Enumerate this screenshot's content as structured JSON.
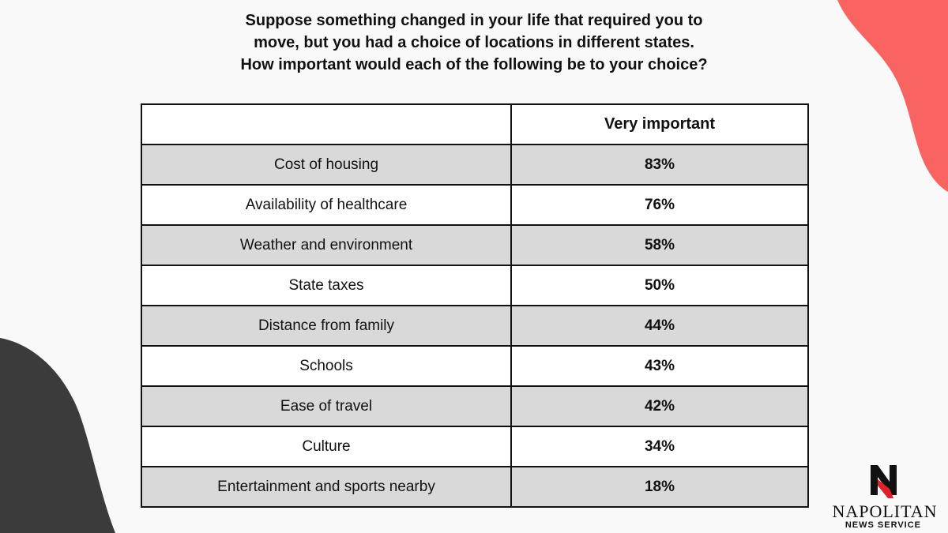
{
  "colors": {
    "background": "#f9f9f9",
    "accent_coral": "#f96462",
    "accent_dark": "#3b3b3b",
    "row_shaded": "#d9d9d9",
    "row_plain": "#ffffff",
    "logo_red": "#e0202a"
  },
  "header": {
    "question": "Suppose something changed in your life that required you to move, but you had a choice of locations in different states. How important would each of the following be to your choice?"
  },
  "chart_data": {
    "type": "table",
    "title": "Suppose something changed in your life that required you to move, but you had a choice of locations in different states. How important would each of the following be to your choice?",
    "columns": [
      "",
      "Very important"
    ],
    "rows": [
      {
        "label": "Cost of housing",
        "value": "83%"
      },
      {
        "label": "Availability of healthcare",
        "value": "76%"
      },
      {
        "label": "Weather and environment",
        "value": "58%"
      },
      {
        "label": "State taxes",
        "value": "50%"
      },
      {
        "label": "Distance from family",
        "value": "44%"
      },
      {
        "label": "Schools",
        "value": "43%"
      },
      {
        "label": "Ease of travel",
        "value": "42%"
      },
      {
        "label": "Culture",
        "value": "34%"
      },
      {
        "label": "Entertainment and sports nearby",
        "value": "18%"
      }
    ],
    "categories": [
      "Cost of housing",
      "Availability of healthcare",
      "Weather and environment",
      "State taxes",
      "Distance from family",
      "Schools",
      "Ease of travel",
      "Culture",
      "Entertainment and sports nearby"
    ],
    "values": [
      83,
      76,
      58,
      50,
      44,
      43,
      42,
      34,
      18
    ]
  },
  "brand": {
    "logo_icon": "napolitan-n-logo-icon",
    "name": "NAPOLITAN",
    "tagline": "NEWS SERVICE"
  }
}
